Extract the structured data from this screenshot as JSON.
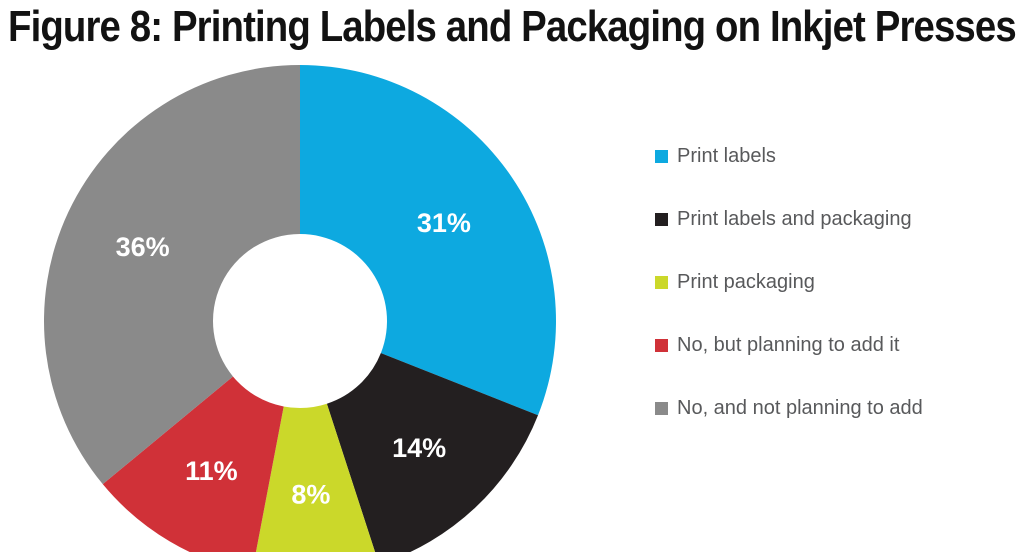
{
  "chart_data": {
    "type": "pie",
    "subtype": "donut",
    "title": "Figure 8: Printing Labels and Packaging on Inkjet Presses",
    "direction": "clockwise",
    "start_angle_deg": 0,
    "legend_position": "right",
    "background_color": "#FFFFFF",
    "title_color": "#121212",
    "legend_text_color": "#58595B",
    "data_label_color": "#FFFFFF",
    "slices": [
      {
        "label": "Print labels",
        "value": 31,
        "display_value": "31%",
        "color": "#0DA9E0"
      },
      {
        "label": "Print labels and packaging",
        "value": 14,
        "display_value": "14%",
        "color": "#231F20"
      },
      {
        "label": "Print packaging",
        "value": 8,
        "display_value": "8%",
        "color": "#CBD82A"
      },
      {
        "label": "No, but planning to add it",
        "value": 11,
        "display_value": "11%",
        "color": "#D03138"
      },
      {
        "label": "No, and not planning to add",
        "value": 36,
        "display_value": "36%",
        "color": "#8A8A8A"
      }
    ]
  }
}
